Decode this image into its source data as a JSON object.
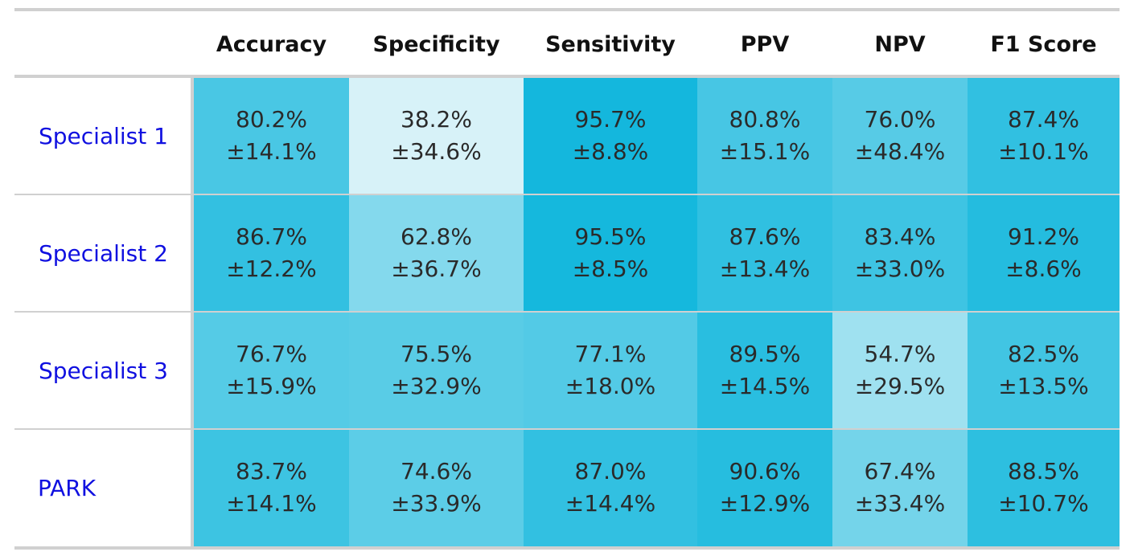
{
  "chart_data": {
    "type": "table",
    "columns": [
      "Accuracy",
      "Specificity",
      "Sensitivity",
      "PPV",
      "NPV",
      "F1 Score"
    ],
    "rows": [
      {
        "label": "Specialist 1",
        "values": [
          80.2,
          38.2,
          95.7,
          80.8,
          76.0,
          87.4
        ],
        "errors": [
          14.1,
          34.6,
          8.8,
          15.1,
          48.4,
          10.1
        ],
        "cells": [
          [
            "80.2%",
            "±14.1%"
          ],
          [
            "38.2%",
            "±34.6%"
          ],
          [
            "95.7%",
            "±8.8%"
          ],
          [
            "80.8%",
            "±15.1%"
          ],
          [
            "76.0%",
            "±48.4%"
          ],
          [
            "87.4%",
            "±10.1%"
          ]
        ]
      },
      {
        "label": "Specialist 2",
        "values": [
          86.7,
          62.8,
          95.5,
          87.6,
          83.4,
          91.2
        ],
        "errors": [
          12.2,
          36.7,
          8.5,
          13.4,
          33.0,
          8.6
        ],
        "cells": [
          [
            "86.7%",
            "±12.2%"
          ],
          [
            "62.8%",
            "±36.7%"
          ],
          [
            "95.5%",
            "±8.5%"
          ],
          [
            "87.6%",
            "±13.4%"
          ],
          [
            "83.4%",
            "±33.0%"
          ],
          [
            "91.2%",
            "±8.6%"
          ]
        ]
      },
      {
        "label": "Specialist 3",
        "values": [
          76.7,
          75.5,
          77.1,
          89.5,
          54.7,
          82.5
        ],
        "errors": [
          15.9,
          32.9,
          18.0,
          14.5,
          29.5,
          13.5
        ],
        "cells": [
          [
            "76.7%",
            "±15.9%"
          ],
          [
            "75.5%",
            "±32.9%"
          ],
          [
            "77.1%",
            "±18.0%"
          ],
          [
            "89.5%",
            "±14.5%"
          ],
          [
            "54.7%",
            "±29.5%"
          ],
          [
            "82.5%",
            "±13.5%"
          ]
        ]
      },
      {
        "label": "PARK",
        "values": [
          83.7,
          74.6,
          87.0,
          90.6,
          67.4,
          88.5
        ],
        "errors": [
          14.1,
          33.9,
          14.4,
          12.9,
          33.4,
          10.7
        ],
        "cells": [
          [
            "83.7%",
            "±14.1%"
          ],
          [
            "74.6%",
            "±33.9%"
          ],
          [
            "87.0%",
            "±14.4%"
          ],
          [
            "90.6%",
            "±12.9%"
          ],
          [
            "67.4%",
            "±33.4%"
          ],
          [
            "88.5%",
            "±10.7%"
          ]
        ]
      }
    ],
    "colors": {
      "low": "#e2f5fa",
      "high": "#10b6dc",
      "row_label": "#1010e0"
    }
  }
}
